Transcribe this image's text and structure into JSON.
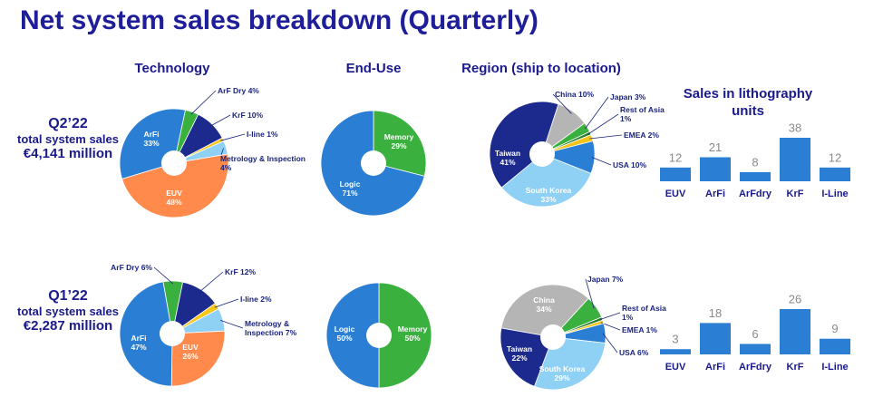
{
  "title": "Net system sales breakdown (Quarterly)",
  "columns": [
    "Technology",
    "End-Use",
    "Region (ship to location)"
  ],
  "rows": [
    {
      "period": "Q2’22",
      "caption": "total system sales",
      "total": "€4,141 million"
    },
    {
      "period": "Q1’22",
      "caption": "total system sales",
      "total": "€2,287 million"
    }
  ],
  "chart_data": [
    {
      "type": "pie",
      "categories": [
        "ArF Dry",
        "KrF",
        "I-line",
        "Metrology & Inspection",
        "EUV",
        "ArFi"
      ],
      "values": [
        4,
        10,
        1,
        4,
        48,
        33
      ],
      "value_labels": [
        "4%",
        "10%",
        "1%",
        "4%",
        "48%",
        "33%"
      ],
      "colors": [
        "#3ab03e",
        "#1b2a8c",
        "#f5c518",
        "#8fd0f5",
        "#ff8a4c",
        "#2a7fd4"
      ]
    },
    {
      "type": "pie",
      "categories": [
        "Memory",
        "Logic"
      ],
      "values": [
        29,
        71
      ],
      "value_labels": [
        "29%",
        "71%"
      ],
      "colors": [
        "#3ab03e",
        "#2a7fd4"
      ]
    },
    {
      "type": "pie",
      "categories": [
        "China",
        "Japan",
        "Rest of Asia",
        "EMEA",
        "USA",
        "South Korea",
        "Taiwan"
      ],
      "values": [
        10,
        3,
        1,
        2,
        10,
        33,
        41
      ],
      "value_labels": [
        "10%",
        "3%",
        "1%",
        "2%",
        "10%",
        "33%",
        "41%"
      ],
      "colors": [
        "#b5b5b5",
        "#3ab03e",
        "#2e7d32",
        "#f5c518",
        "#2a7fd4",
        "#8fd0f5",
        "#1b2a8c"
      ]
    },
    {
      "type": "bar",
      "title": "Sales in lithography units",
      "categories": [
        "EUV",
        "ArFi",
        "ArFdry",
        "KrF",
        "I-Line"
      ],
      "values": [
        12,
        21,
        8,
        38,
        12
      ],
      "color": "#2a7fd4"
    },
    {
      "type": "pie",
      "categories": [
        "ArF Dry",
        "KrF",
        "I-line",
        "Metrology & Inspection",
        "EUV",
        "ArFi"
      ],
      "values": [
        6,
        12,
        2,
        7,
        26,
        47
      ],
      "value_labels": [
        "6%",
        "12%",
        "2%",
        "7%",
        "26%",
        "47%"
      ],
      "colors": [
        "#3ab03e",
        "#1b2a8c",
        "#f5c518",
        "#8fd0f5",
        "#ff8a4c",
        "#2a7fd4"
      ]
    },
    {
      "type": "pie",
      "categories": [
        "Memory",
        "Logic"
      ],
      "values": [
        50,
        50
      ],
      "value_labels": [
        "50%",
        "50%"
      ],
      "colors": [
        "#3ab03e",
        "#2a7fd4"
      ]
    },
    {
      "type": "pie",
      "categories": [
        "China",
        "Japan",
        "Rest of Asia",
        "EMEA",
        "USA",
        "South Korea",
        "Taiwan"
      ],
      "values": [
        34,
        7,
        1,
        1,
        6,
        29,
        22
      ],
      "value_labels": [
        "34%",
        "7%",
        "1%",
        "1%",
        "6%",
        "29%",
        "22%"
      ],
      "colors": [
        "#b5b5b5",
        "#3ab03e",
        "#2e7d32",
        "#f5c518",
        "#2a7fd4",
        "#8fd0f5",
        "#1b2a8c"
      ]
    },
    {
      "type": "bar",
      "categories": [
        "EUV",
        "ArFi",
        "ArFdry",
        "KrF",
        "I-Line"
      ],
      "values": [
        3,
        18,
        6,
        26,
        9
      ],
      "color": "#2a7fd4"
    }
  ]
}
